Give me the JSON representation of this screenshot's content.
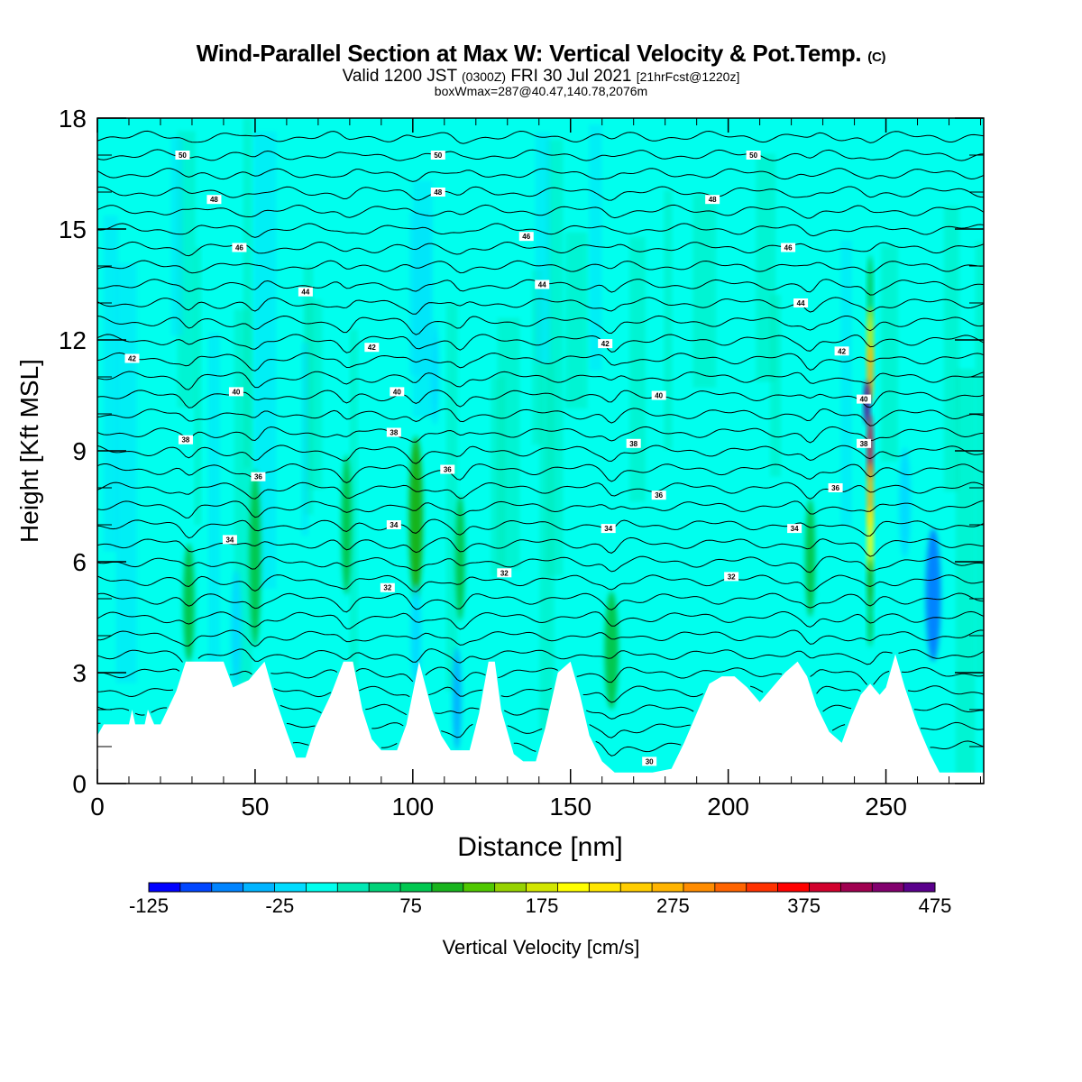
{
  "title": {
    "main": "Wind-Parallel Section at Max W: Vertical Velocity & Pot.Temp.",
    "main_mark": "(C)",
    "valid_prefix": "Valid 1200 JST",
    "valid_utc": "(0300Z)",
    "valid_date": "FRI 30 Jul 2021",
    "valid_fcst": "[21hrFcst@1220z]",
    "box": "boxWmax=287@40.47,140.78,2076m"
  },
  "chart_data": {
    "type": "heatmap",
    "title": "Wind-Parallel Section at Max W: Vertical Velocity & Pot.Temp.",
    "xlabel": "Distance [nm]",
    "ylabel": "Height [Kft MSL]",
    "xlim": [
      0,
      281
    ],
    "ylim": [
      0,
      18
    ],
    "x_ticks": [
      0,
      50,
      100,
      150,
      200,
      250
    ],
    "y_ticks": [
      0,
      3,
      6,
      9,
      12,
      15,
      18
    ],
    "background_fill": "#00ffee",
    "colorbar": {
      "label": "Vertical Velocity [cm/s]",
      "tick_labels": [
        "-125",
        "-25",
        "75",
        "175",
        "275",
        "375",
        "475"
      ],
      "min": -125,
      "max": 475,
      "step": 25,
      "colors": [
        "#0000ff",
        "#0046ff",
        "#0084ff",
        "#00b4ff",
        "#00dcff",
        "#00ffee",
        "#00e8b4",
        "#00d278",
        "#00c850",
        "#19b41e",
        "#50c800",
        "#96d200",
        "#d2e600",
        "#ffff00",
        "#ffe600",
        "#ffcd00",
        "#ffb400",
        "#ff8c00",
        "#ff6400",
        "#ff3200",
        "#ff0000",
        "#d2002d",
        "#a00050",
        "#82006e",
        "#5a008c"
      ]
    },
    "terrain_top": [
      [
        0,
        1.3
      ],
      [
        2,
        1.6
      ],
      [
        10,
        1.6
      ],
      [
        11,
        2
      ],
      [
        12,
        1.6
      ],
      [
        15,
        1.6
      ],
      [
        16,
        2
      ],
      [
        18,
        1.6
      ],
      [
        20,
        1.6
      ],
      [
        25,
        2.5
      ],
      [
        28,
        3.3
      ],
      [
        40,
        3.3
      ],
      [
        43,
        2.6
      ],
      [
        48,
        2.8
      ],
      [
        53,
        3.3
      ],
      [
        56,
        2.4
      ],
      [
        60,
        1.4
      ],
      [
        63,
        0.7
      ],
      [
        66,
        0.7
      ],
      [
        69,
        1.5
      ],
      [
        74,
        2.4
      ],
      [
        78,
        3.3
      ],
      [
        81,
        3.3
      ],
      [
        84,
        2
      ],
      [
        87,
        1.2
      ],
      [
        90,
        0.9
      ],
      [
        95,
        0.9
      ],
      [
        98,
        1.6
      ],
      [
        102,
        3.3
      ],
      [
        106,
        2
      ],
      [
        109,
        1.3
      ],
      [
        112,
        0.9
      ],
      [
        118,
        0.9
      ],
      [
        121,
        1.9
      ],
      [
        124,
        3.3
      ],
      [
        126,
        3.3
      ],
      [
        128,
        2
      ],
      [
        132,
        0.8
      ],
      [
        135,
        0.6
      ],
      [
        139,
        0.6
      ],
      [
        142,
        1.5
      ],
      [
        146,
        3
      ],
      [
        150,
        3.3
      ],
      [
        153,
        2.4
      ],
      [
        156,
        1.3
      ],
      [
        160,
        0.6
      ],
      [
        164,
        0.3
      ],
      [
        176,
        0.3
      ],
      [
        182,
        0.4
      ],
      [
        186,
        1.1
      ],
      [
        190,
        1.9
      ],
      [
        194,
        2.7
      ],
      [
        198,
        2.9
      ],
      [
        202,
        2.9
      ],
      [
        206,
        2.6
      ],
      [
        210,
        2.2
      ],
      [
        214,
        2.6
      ],
      [
        218,
        3
      ],
      [
        222,
        3.3
      ],
      [
        225,
        2.9
      ],
      [
        228,
        2.1
      ],
      [
        232,
        1.4
      ],
      [
        236,
        1.1
      ],
      [
        239,
        1.8
      ],
      [
        242,
        2.4
      ],
      [
        245,
        2.7
      ],
      [
        248,
        2.4
      ],
      [
        250,
        2.6
      ],
      [
        253,
        3.5
      ],
      [
        256,
        2.6
      ],
      [
        260,
        1.6
      ],
      [
        264,
        0.8
      ],
      [
        267,
        0.3
      ],
      [
        281,
        0.3
      ]
    ],
    "velocity_features": [
      {
        "x": 29,
        "y": 4.9,
        "rx": 1.8,
        "ry": 1.6,
        "w": 85
      },
      {
        "x": 44,
        "y": 4.2,
        "rx": 1.6,
        "ry": 1.6,
        "w": -25
      },
      {
        "x": 50,
        "y": 6.1,
        "rx": 1.8,
        "ry": 2.4,
        "w": 75
      },
      {
        "x": 79,
        "y": 7.0,
        "rx": 1.6,
        "ry": 1.9,
        "w": 90
      },
      {
        "x": 101,
        "y": 7.2,
        "rx": 2.2,
        "ry": 2.2,
        "w": 110
      },
      {
        "x": 101,
        "y": 4.0,
        "rx": 1.6,
        "ry": 1.4,
        "w": -25
      },
      {
        "x": 107,
        "y": 11.1,
        "rx": 1.2,
        "ry": 1.4,
        "w": -15
      },
      {
        "x": 115,
        "y": 6.1,
        "rx": 1.5,
        "ry": 1.7,
        "w": 80
      },
      {
        "x": 114,
        "y": 2.3,
        "rx": 1.4,
        "ry": 1.4,
        "w": -30
      },
      {
        "x": 163,
        "y": 3.6,
        "rx": 2.2,
        "ry": 1.6,
        "w": 85
      },
      {
        "x": 226,
        "y": 6.1,
        "rx": 1.6,
        "ry": 1.6,
        "w": 75
      },
      {
        "x": 245,
        "y": 13.4,
        "rx": 0.8,
        "ry": 0.9,
        "w": 90
      },
      {
        "x": 245,
        "y": 12.1,
        "rx": 0.9,
        "ry": 0.8,
        "w": 175
      },
      {
        "x": 245,
        "y": 11.1,
        "rx": 0.9,
        "ry": 0.8,
        "w": 287
      },
      {
        "x": 244,
        "y": 10.3,
        "rx": 0.9,
        "ry": 0.6,
        "w": 475
      },
      {
        "x": 245,
        "y": 9.1,
        "rx": 0.8,
        "ry": 0.9,
        "w": 400
      },
      {
        "x": 245,
        "y": 7.8,
        "rx": 0.9,
        "ry": 0.9,
        "w": 287
      },
      {
        "x": 245,
        "y": 6.6,
        "rx": 0.9,
        "ry": 0.9,
        "w": 200
      },
      {
        "x": 245,
        "y": 5.4,
        "rx": 0.9,
        "ry": 0.7,
        "w": 110
      },
      {
        "x": 245,
        "y": 4.3,
        "rx": 0.8,
        "ry": 0.6,
        "w": 75
      },
      {
        "x": 256,
        "y": 7.6,
        "rx": 1.8,
        "ry": 1.5,
        "w": -25
      },
      {
        "x": 265,
        "y": 5.1,
        "rx": 2.4,
        "ry": 1.8,
        "w": -70
      }
    ],
    "theta_labels": [
      {
        "x": 27,
        "y": 17.0,
        "text": "50"
      },
      {
        "x": 108,
        "y": 17.0,
        "text": "50"
      },
      {
        "x": 208,
        "y": 17.0,
        "text": "50"
      },
      {
        "x": 37,
        "y": 15.8,
        "text": "48"
      },
      {
        "x": 108,
        "y": 16.0,
        "text": "48"
      },
      {
        "x": 195,
        "y": 15.8,
        "text": "48"
      },
      {
        "x": 45,
        "y": 14.5,
        "text": "46"
      },
      {
        "x": 136,
        "y": 14.8,
        "text": "46"
      },
      {
        "x": 219,
        "y": 14.5,
        "text": "46"
      },
      {
        "x": 66,
        "y": 13.3,
        "text": "44"
      },
      {
        "x": 141,
        "y": 13.5,
        "text": "44"
      },
      {
        "x": 223,
        "y": 13.0,
        "text": "44"
      },
      {
        "x": 11,
        "y": 11.5,
        "text": "42"
      },
      {
        "x": 87,
        "y": 11.8,
        "text": "42"
      },
      {
        "x": 161,
        "y": 11.9,
        "text": "42"
      },
      {
        "x": 236,
        "y": 11.7,
        "text": "42"
      },
      {
        "x": 44,
        "y": 10.6,
        "text": "40"
      },
      {
        "x": 95,
        "y": 10.6,
        "text": "40"
      },
      {
        "x": 178,
        "y": 10.5,
        "text": "40"
      },
      {
        "x": 243,
        "y": 10.4,
        "text": "40"
      },
      {
        "x": 28,
        "y": 9.3,
        "text": "38"
      },
      {
        "x": 94,
        "y": 9.5,
        "text": "38"
      },
      {
        "x": 170,
        "y": 9.2,
        "text": "38"
      },
      {
        "x": 243,
        "y": 9.2,
        "text": "38"
      },
      {
        "x": 51,
        "y": 8.3,
        "text": "36"
      },
      {
        "x": 111,
        "y": 8.5,
        "text": "36"
      },
      {
        "x": 178,
        "y": 7.8,
        "text": "36"
      },
      {
        "x": 234,
        "y": 8.0,
        "text": "36"
      },
      {
        "x": 42,
        "y": 6.6,
        "text": "34"
      },
      {
        "x": 94,
        "y": 7.0,
        "text": "34"
      },
      {
        "x": 162,
        "y": 6.9,
        "text": "34"
      },
      {
        "x": 221,
        "y": 6.9,
        "text": "34"
      },
      {
        "x": 92,
        "y": 5.3,
        "text": "32"
      },
      {
        "x": 129,
        "y": 5.7,
        "text": "32"
      },
      {
        "x": 201,
        "y": 5.6,
        "text": "32"
      },
      {
        "x": 175,
        "y": 0.6,
        "text": "30"
      }
    ]
  }
}
